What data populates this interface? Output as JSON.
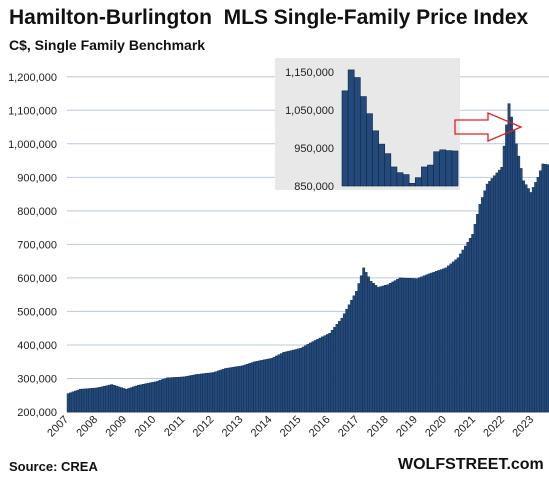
{
  "header": {
    "title": "Hamilton-Burlington  MLS Single-Family Price Index",
    "subtitle": "C$, Single Family Benchmark"
  },
  "footer": {
    "source": "Source: CREA",
    "brand": "WOLFSTREET.com"
  },
  "colors": {
    "bar_fill": "#244a7c",
    "bar_stroke": "#0e2744",
    "grid": "#b8c8de",
    "inset_bg": "#e8e8e8",
    "arrow": "#e0201f"
  },
  "chart_data": [
    {
      "type": "bar",
      "title": "Hamilton-Burlington  MLS Single-Family Price Index",
      "subtitle": "C$, Single Family Benchmark",
      "ylim": [
        200000,
        1250000
      ],
      "y_ticks": [
        "200,000",
        "300,000",
        "400,000",
        "500,000",
        "600,000",
        "700,000",
        "800,000",
        "900,000",
        "1,000,000",
        "1,100,000",
        "1,200,000"
      ],
      "x_ticks": [
        "2007",
        "2008",
        "2009",
        "2010",
        "2011",
        "2012",
        "2013",
        "2014",
        "2015",
        "2016",
        "2017",
        "2018",
        "2019",
        "2020",
        "2021",
        "2022",
        "2023"
      ],
      "grid": true,
      "frequency": "monthly",
      "start": "2007-01",
      "end": "2023-07",
      "anchors": [
        [
          "2007-01",
          255000
        ],
        [
          "2007-06",
          268000
        ],
        [
          "2008-01",
          272000
        ],
        [
          "2008-07",
          282000
        ],
        [
          "2009-01",
          268000
        ],
        [
          "2009-06",
          280000
        ],
        [
          "2010-01",
          290000
        ],
        [
          "2010-06",
          302000
        ],
        [
          "2011-01",
          305000
        ],
        [
          "2011-06",
          312000
        ],
        [
          "2012-01",
          318000
        ],
        [
          "2012-06",
          330000
        ],
        [
          "2013-01",
          338000
        ],
        [
          "2013-06",
          350000
        ],
        [
          "2014-01",
          360000
        ],
        [
          "2014-06",
          378000
        ],
        [
          "2015-01",
          390000
        ],
        [
          "2015-06",
          410000
        ],
        [
          "2016-01",
          435000
        ],
        [
          "2016-06",
          480000
        ],
        [
          "2016-12",
          560000
        ],
        [
          "2017-03",
          630000
        ],
        [
          "2017-06",
          590000
        ],
        [
          "2017-09",
          572000
        ],
        [
          "2018-01",
          580000
        ],
        [
          "2018-06",
          600000
        ],
        [
          "2019-01",
          598000
        ],
        [
          "2019-06",
          612000
        ],
        [
          "2020-01",
          630000
        ],
        [
          "2020-06",
          660000
        ],
        [
          "2020-12",
          730000
        ],
        [
          "2021-03",
          820000
        ],
        [
          "2021-06",
          880000
        ],
        [
          "2021-12",
          930000
        ],
        [
          "2022-03",
          1120000
        ],
        [
          "2022-06",
          1000000
        ],
        [
          "2022-09",
          890000
        ],
        [
          "2022-12",
          855000
        ],
        [
          "2023-03",
          900000
        ],
        [
          "2023-05",
          940000
        ],
        [
          "2023-07",
          938000
        ]
      ]
    },
    {
      "type": "bar",
      "title": "",
      "ylim": [
        850000,
        1160000
      ],
      "y_ticks": [
        "850,000",
        "950,000",
        "1,050,000",
        "1,150,000"
      ],
      "values": [
        1100000,
        1155000,
        1135000,
        1085000,
        1040000,
        995000,
        960000,
        935000,
        900000,
        885000,
        880000,
        857000,
        872000,
        900000,
        905000,
        940000,
        945000,
        943000,
        942000
      ]
    }
  ]
}
